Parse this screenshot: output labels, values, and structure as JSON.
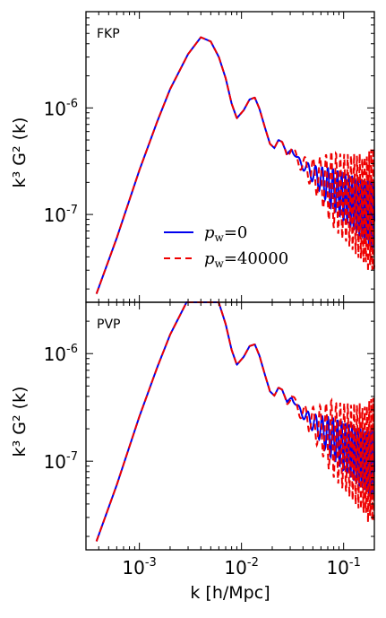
{
  "chart_data": {
    "type": "line",
    "xlabel": "k [h/Mpc]",
    "ylabel": "k³  G² (k)",
    "xscale": "log",
    "yscale": "log",
    "xlim": [
      0.0003,
      0.2
    ],
    "x_ticks": [
      {
        "value": 0.001,
        "mantissa": "10",
        "exponent": "-3"
      },
      {
        "value": 0.01,
        "mantissa": "10",
        "exponent": "-2"
      },
      {
        "value": 0.1,
        "mantissa": "10",
        "exponent": "-1"
      }
    ],
    "y_ticks": [
      {
        "value": 1e-06,
        "mantissa": "10",
        "exponent": "-6"
      },
      {
        "value": 1e-07,
        "mantissa": "10",
        "exponent": "-7"
      }
    ],
    "legend": {
      "placement": "lower-center of top panel",
      "entries": [
        {
          "label_var": "p",
          "label_sub": "w",
          "label_val": "=0",
          "color": "#0000ee",
          "style": "solid"
        },
        {
          "label_var": "p",
          "label_sub": "w",
          "label_val": "=40000",
          "color": "#ee0000",
          "style": "dashed"
        }
      ]
    },
    "panels": [
      {
        "label": "FKP",
        "ylim": [
          1.5e-08,
          8e-06
        ],
        "series": [
          {
            "name": "p_w=0",
            "color": "#0000ee",
            "style": "solid",
            "wiggle": 0.1,
            "offset": 0.0
          },
          {
            "name": "p_w=40000",
            "color": "#ee0000",
            "style": "dashed",
            "wiggle": 0.18,
            "offset": 0.35
          }
        ]
      },
      {
        "label": "PVP",
        "ylim": [
          1.5e-08,
          3e-06
        ],
        "series": [
          {
            "name": "p_w=0",
            "color": "#0000ee",
            "style": "solid",
            "wiggle": 0.1,
            "offset": 0.0
          },
          {
            "name": "p_w=40000",
            "color": "#ee0000",
            "style": "dashed",
            "wiggle": 0.18,
            "offset": 0.35
          }
        ]
      }
    ],
    "shape_points": [
      [
        0.00038,
        1.8e-08
      ],
      [
        0.0006,
        6e-08
      ],
      [
        0.001,
        2.6e-07
      ],
      [
        0.0015,
        7.5e-07
      ],
      [
        0.002,
        1.5e-06
      ],
      [
        0.003,
        3.2e-06
      ],
      [
        0.004,
        4.6e-06
      ],
      [
        0.005,
        4.2e-06
      ],
      [
        0.006,
        3e-06
      ],
      [
        0.007,
        1.9e-06
      ],
      [
        0.008,
        1.1e-06
      ],
      [
        0.009,
        8e-07
      ],
      [
        0.0105,
        9.5e-07
      ],
      [
        0.012,
        1.2e-06
      ],
      [
        0.0135,
        1.25e-06
      ],
      [
        0.015,
        9.8e-07
      ],
      [
        0.017,
        6.5e-07
      ],
      [
        0.019,
        4.6e-07
      ],
      [
        0.021,
        4.2e-07
      ],
      [
        0.023,
        5e-07
      ],
      [
        0.025,
        4.8e-07
      ],
      [
        0.028,
        3.6e-07
      ],
      [
        0.031,
        4.2e-07
      ],
      [
        0.035,
        3.3e-07
      ],
      [
        0.04,
        2.9e-07
      ],
      [
        0.05,
        2.4e-07
      ],
      [
        0.06,
        2.1e-07
      ],
      [
        0.08,
        1.7e-07
      ],
      [
        0.1,
        1.45e-07
      ],
      [
        0.13,
        1.25e-07
      ],
      [
        0.16,
        1.1e-07
      ],
      [
        0.2,
        1e-07
      ]
    ]
  }
}
